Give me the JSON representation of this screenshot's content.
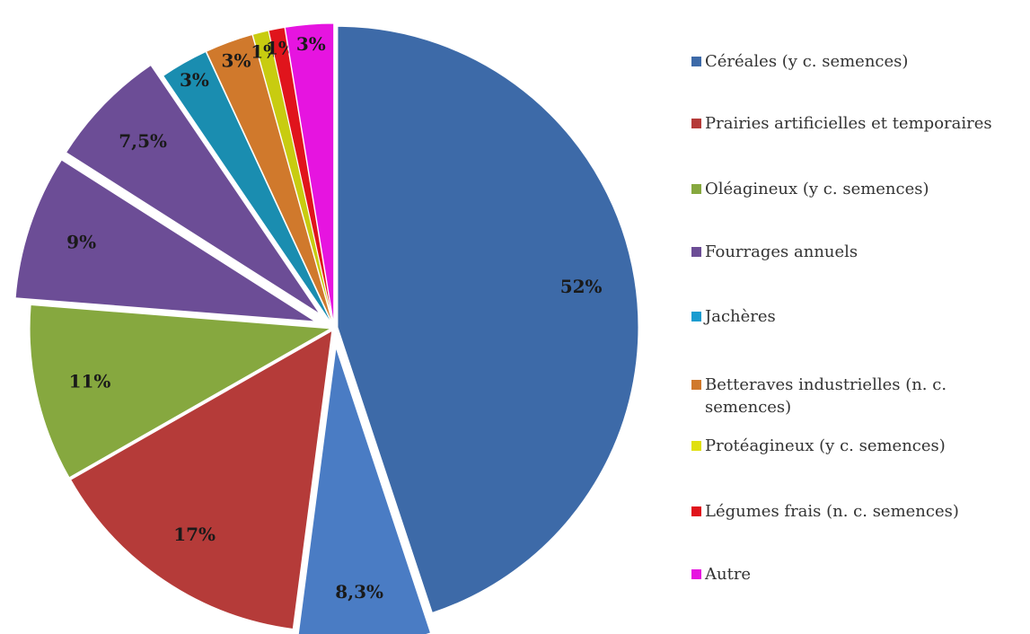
{
  "chart_data": {
    "type": "pie",
    "values": [
      52,
      8.3,
      17,
      11,
      9,
      7.5,
      3,
      3,
      1,
      1,
      3
    ],
    "value_labels": [
      "52%",
      "8,3%",
      "17%",
      "11%",
      "9%",
      "7,5%",
      "3%",
      "3%",
      "1%",
      "1%",
      "3%"
    ],
    "colors": [
      "#3d6aa8",
      "#4a7cc4",
      "#b53b39",
      "#86a83f",
      "#6c4d96",
      "#6c4d96",
      "#1a8db0",
      "#d0792c",
      "#c8cc10",
      "#e0141c",
      "#e614e0"
    ],
    "explode": [
      false,
      true,
      false,
      false,
      true,
      true,
      false,
      false,
      false,
      false,
      false
    ],
    "legend": [
      {
        "name": "Céréales (y c. semences)",
        "color": "#3d6aa8"
      },
      {
        "name": "Prairies artificielles et temporaires",
        "color": "#b53b39"
      },
      {
        "name": "Oléagineux (y c. semences)",
        "color": "#86a83f"
      },
      {
        "name": "Fourrages annuels",
        "color": "#6c4d96"
      },
      {
        "name": "Jachères",
        "color": "#1a9cd0"
      },
      {
        "name": "Betteraves industrielles (n. c. semences)",
        "color": "#d0792c"
      },
      {
        "name": "Protéagineux (y c. semences)",
        "color": "#e0e010"
      },
      {
        "name": "Légumes frais (n. c. semences)",
        "color": "#e0141c"
      },
      {
        "name": "Autre",
        "color": "#e614e0"
      }
    ]
  }
}
